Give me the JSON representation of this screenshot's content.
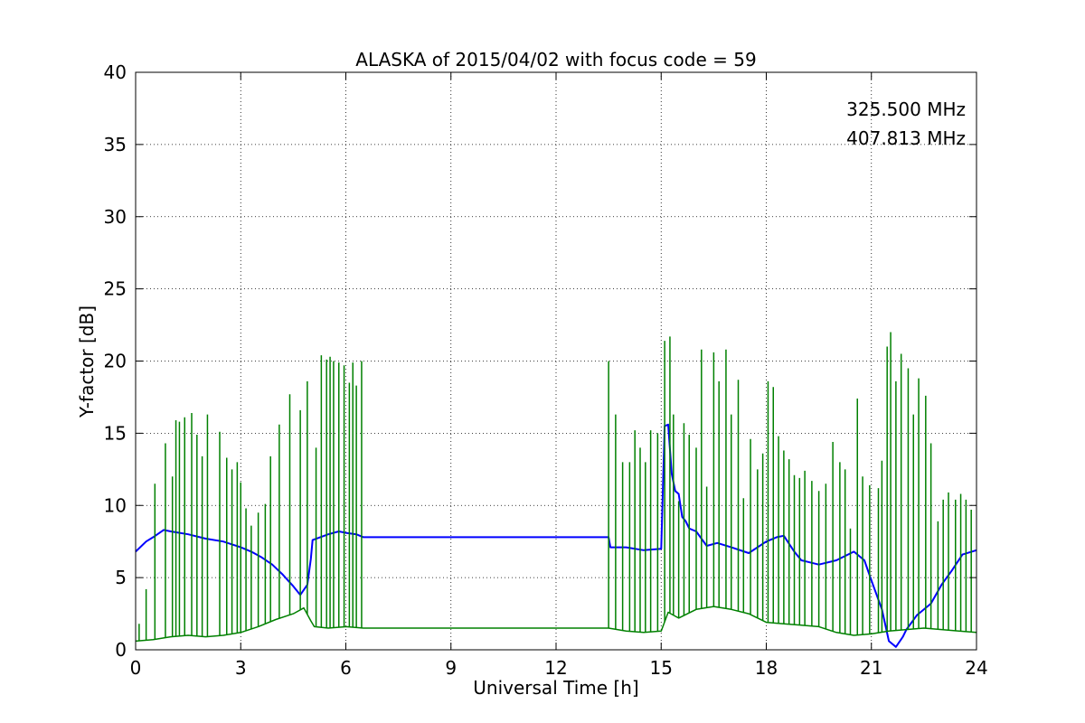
{
  "chart_data": {
    "type": "line",
    "title": "ALASKA of 2015/04/02 with focus code = 59",
    "xlabel": "Universal Time [h]",
    "ylabel": "Y-factor [dB]",
    "xlim": [
      0,
      24
    ],
    "ylim": [
      0,
      40
    ],
    "xticks": [
      0,
      3,
      6,
      9,
      12,
      15,
      18,
      21,
      24
    ],
    "yticks": [
      0,
      5,
      10,
      15,
      20,
      25,
      30,
      35,
      40
    ],
    "grid": true,
    "legend_position": "top-right",
    "series": [
      {
        "name": "325.500 MHz",
        "color": "#0000ff",
        "x": [
          0,
          0.3,
          0.5,
          0.8,
          1.0,
          1.5,
          2.0,
          2.5,
          3.0,
          3.3,
          3.6,
          3.9,
          4.2,
          4.5,
          4.7,
          4.9,
          5.0,
          5.05,
          5.5,
          5.8,
          6.0,
          6.3,
          6.5,
          13.5,
          13.55,
          14.0,
          14.5,
          15.0,
          15.1,
          15.2,
          15.3,
          15.4,
          15.5,
          15.6,
          15.7,
          15.8,
          16.0,
          16.3,
          16.6,
          17.0,
          17.5,
          18.0,
          18.3,
          18.5,
          18.8,
          19.0,
          19.5,
          20.0,
          20.5,
          20.8,
          21.0,
          21.3,
          21.5,
          21.7,
          21.9,
          22.0,
          22.3,
          22.7,
          23.0,
          23.3,
          23.6,
          24.0
        ],
        "y": [
          6.8,
          7.5,
          7.8,
          8.3,
          8.2,
          8.0,
          7.7,
          7.5,
          7.1,
          6.8,
          6.4,
          5.9,
          5.2,
          4.4,
          3.8,
          4.5,
          6.3,
          7.6,
          8.0,
          8.2,
          8.1,
          8.0,
          7.8,
          7.8,
          7.1,
          7.1,
          6.9,
          7.0,
          15.5,
          15.6,
          12.2,
          11.0,
          10.8,
          9.2,
          8.9,
          8.4,
          8.2,
          7.2,
          7.4,
          7.1,
          6.7,
          7.5,
          7.8,
          7.9,
          6.8,
          6.2,
          5.9,
          6.2,
          6.8,
          6.2,
          4.8,
          2.8,
          0.6,
          0.2,
          0.9,
          1.4,
          2.4,
          3.2,
          4.5,
          5.5,
          6.6,
          6.9
        ]
      },
      {
        "name": "407.813 MHz",
        "color": "#008000",
        "x": [
          0,
          0.5,
          1.0,
          1.5,
          2.0,
          2.5,
          3.0,
          3.5,
          4.0,
          4.5,
          4.8,
          5.0,
          5.1,
          5.5,
          6.0,
          6.5,
          13.5,
          14.0,
          14.5,
          15.0,
          15.2,
          15.5,
          16.0,
          16.5,
          17.0,
          17.5,
          18.0,
          18.5,
          19.0,
          19.5,
          20.0,
          20.5,
          21.0,
          21.5,
          22.0,
          22.5,
          23.0,
          23.5,
          24.0
        ],
        "y": [
          0.6,
          0.7,
          0.9,
          1.0,
          0.9,
          1.0,
          1.2,
          1.6,
          2.1,
          2.5,
          2.9,
          2.0,
          1.6,
          1.5,
          1.6,
          1.5,
          1.5,
          1.3,
          1.2,
          1.3,
          2.6,
          2.2,
          2.8,
          3.0,
          2.8,
          2.5,
          1.9,
          1.8,
          1.7,
          1.6,
          1.2,
          1.0,
          1.1,
          1.3,
          1.4,
          1.5,
          1.4,
          1.3,
          1.2
        ],
        "spikes": [
          [
            0.1,
            1.8
          ],
          [
            0.3,
            4.2
          ],
          [
            0.55,
            11.5
          ],
          [
            0.85,
            14.3
          ],
          [
            1.05,
            12.0
          ],
          [
            1.15,
            15.9
          ],
          [
            1.25,
            15.8
          ],
          [
            1.4,
            16.1
          ],
          [
            1.6,
            16.4
          ],
          [
            1.75,
            14.9
          ],
          [
            1.9,
            13.4
          ],
          [
            2.05,
            16.3
          ],
          [
            2.4,
            15.1
          ],
          [
            2.6,
            13.3
          ],
          [
            2.75,
            12.5
          ],
          [
            2.9,
            13.0
          ],
          [
            3.0,
            11.6
          ],
          [
            3.15,
            9.8
          ],
          [
            3.3,
            8.6
          ],
          [
            3.5,
            9.5
          ],
          [
            3.7,
            10.1
          ],
          [
            3.85,
            13.4
          ],
          [
            4.1,
            15.6
          ],
          [
            4.4,
            17.7
          ],
          [
            4.7,
            16.6
          ],
          [
            4.9,
            18.6
          ],
          [
            5.15,
            14.0
          ],
          [
            5.3,
            20.4
          ],
          [
            5.45,
            20.1
          ],
          [
            5.55,
            20.3
          ],
          [
            5.65,
            20.0
          ],
          [
            5.8,
            19.9
          ],
          [
            5.95,
            19.7
          ],
          [
            6.1,
            18.5
          ],
          [
            6.2,
            19.9
          ],
          [
            6.3,
            18.3
          ],
          [
            6.45,
            20.0
          ],
          [
            13.5,
            20.0
          ],
          [
            13.7,
            16.3
          ],
          [
            13.9,
            13.0
          ],
          [
            14.1,
            13.0
          ],
          [
            14.25,
            15.2
          ],
          [
            14.4,
            14.0
          ],
          [
            14.55,
            13.0
          ],
          [
            14.7,
            15.2
          ],
          [
            14.9,
            15.0
          ],
          [
            15.1,
            21.4
          ],
          [
            15.25,
            21.7
          ],
          [
            15.35,
            16.3
          ],
          [
            15.5,
            10.3
          ],
          [
            15.65,
            15.7
          ],
          [
            15.8,
            14.9
          ],
          [
            16.0,
            14.0
          ],
          [
            16.15,
            20.8
          ],
          [
            16.3,
            11.3
          ],
          [
            16.5,
            20.6
          ],
          [
            16.65,
            18.6
          ],
          [
            16.85,
            20.8
          ],
          [
            17.0,
            16.3
          ],
          [
            17.2,
            18.7
          ],
          [
            17.35,
            10.5
          ],
          [
            17.55,
            14.6
          ],
          [
            17.75,
            12.5
          ],
          [
            17.9,
            13.6
          ],
          [
            18.05,
            18.6
          ],
          [
            18.2,
            18.2
          ],
          [
            18.35,
            14.8
          ],
          [
            18.5,
            13.8
          ],
          [
            18.65,
            13.2
          ],
          [
            18.8,
            12.1
          ],
          [
            18.95,
            11.9
          ],
          [
            19.1,
            12.4
          ],
          [
            19.3,
            11.7
          ],
          [
            19.5,
            11.0
          ],
          [
            19.7,
            11.5
          ],
          [
            19.9,
            14.4
          ],
          [
            20.1,
            13.0
          ],
          [
            20.25,
            12.5
          ],
          [
            20.4,
            8.4
          ],
          [
            20.6,
            17.4
          ],
          [
            20.75,
            12.0
          ],
          [
            20.95,
            11.4
          ],
          [
            21.2,
            11.2
          ],
          [
            21.3,
            13.1
          ],
          [
            21.45,
            21.0
          ],
          [
            21.55,
            22.0
          ],
          [
            21.7,
            18.6
          ],
          [
            21.85,
            20.5
          ],
          [
            22.05,
            19.5
          ],
          [
            22.2,
            16.3
          ],
          [
            22.35,
            18.8
          ],
          [
            22.55,
            17.6
          ],
          [
            22.7,
            14.3
          ],
          [
            22.9,
            8.9
          ],
          [
            23.05,
            10.4
          ],
          [
            23.2,
            10.9
          ],
          [
            23.4,
            10.4
          ],
          [
            23.55,
            10.8
          ],
          [
            23.7,
            10.4
          ],
          [
            23.85,
            9.7
          ]
        ]
      }
    ]
  }
}
